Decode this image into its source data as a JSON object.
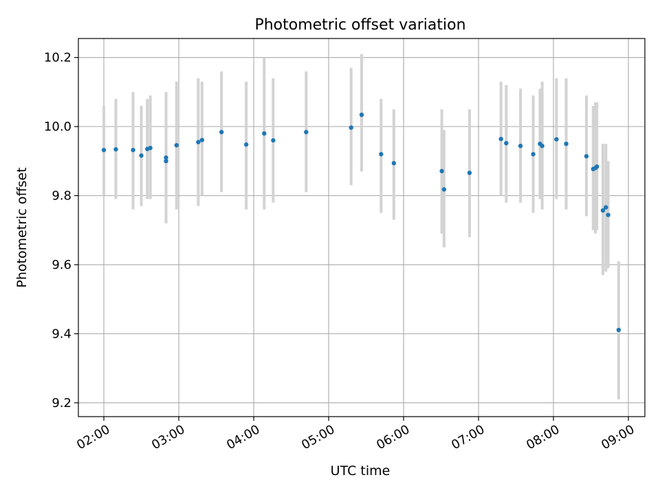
{
  "chart_data": {
    "type": "scatter",
    "title": "Photometric offset variation",
    "xlabel": "UTC time",
    "ylabel": "Photometric offset",
    "x_unit": "UTC time of day (hours)",
    "xlim": [
      1.66,
      9.22
    ],
    "ylim": [
      9.16,
      10.255
    ],
    "grid": true,
    "x_ticks": [
      {
        "value": 2,
        "label": "02:00"
      },
      {
        "value": 3,
        "label": "03:00"
      },
      {
        "value": 4,
        "label": "04:00"
      },
      {
        "value": 5,
        "label": "05:00"
      },
      {
        "value": 6,
        "label": "06:00"
      },
      {
        "value": 7,
        "label": "07:00"
      },
      {
        "value": 8,
        "label": "08:00"
      },
      {
        "value": 9,
        "label": "09:00"
      }
    ],
    "y_ticks": [
      {
        "value": 9.2,
        "label": "9.2"
      },
      {
        "value": 9.4,
        "label": "9.4"
      },
      {
        "value": 9.6,
        "label": "9.6"
      },
      {
        "value": 9.8,
        "label": "9.8"
      },
      {
        "value": 10.0,
        "label": "10.0"
      },
      {
        "value": 10.2,
        "label": "10.2"
      }
    ],
    "point_color": "#1f77b4",
    "errorbar_color": "#d3d3d3",
    "grid_color": "#b0b0b0",
    "points": [
      {
        "x": 2.0,
        "y": 9.932,
        "ylow": 9.8,
        "yhigh": 10.06
      },
      {
        "x": 2.16,
        "y": 9.934,
        "ylow": 9.79,
        "yhigh": 10.08
      },
      {
        "x": 2.39,
        "y": 9.932,
        "ylow": 9.76,
        "yhigh": 10.1
      },
      {
        "x": 2.5,
        "y": 9.916,
        "ylow": 9.77,
        "yhigh": 10.06
      },
      {
        "x": 2.58,
        "y": 9.935,
        "ylow": 9.79,
        "yhigh": 10.08
      },
      {
        "x": 2.62,
        "y": 9.938,
        "ylow": 9.79,
        "yhigh": 10.09
      },
      {
        "x": 2.83,
        "y": 9.9,
        "ylow": 9.72,
        "yhigh": 10.08
      },
      {
        "x": 2.83,
        "y": 9.91,
        "ylow": 9.72,
        "yhigh": 10.1
      },
      {
        "x": 2.97,
        "y": 9.946,
        "ylow": 9.76,
        "yhigh": 10.13
      },
      {
        "x": 3.26,
        "y": 9.955,
        "ylow": 9.77,
        "yhigh": 10.14
      },
      {
        "x": 3.31,
        "y": 9.961,
        "ylow": 9.8,
        "yhigh": 10.13
      },
      {
        "x": 3.57,
        "y": 9.984,
        "ylow": 9.81,
        "yhigh": 10.16
      },
      {
        "x": 3.9,
        "y": 9.948,
        "ylow": 9.76,
        "yhigh": 10.13
      },
      {
        "x": 4.14,
        "y": 9.98,
        "ylow": 9.76,
        "yhigh": 10.2
      },
      {
        "x": 4.26,
        "y": 9.96,
        "ylow": 9.78,
        "yhigh": 10.14
      },
      {
        "x": 4.7,
        "y": 9.984,
        "ylow": 9.81,
        "yhigh": 10.16
      },
      {
        "x": 5.3,
        "y": 9.997,
        "ylow": 9.83,
        "yhigh": 10.17
      },
      {
        "x": 5.44,
        "y": 10.034,
        "ylow": 9.87,
        "yhigh": 10.21
      },
      {
        "x": 5.7,
        "y": 9.92,
        "ylow": 9.75,
        "yhigh": 10.08
      },
      {
        "x": 5.87,
        "y": 9.894,
        "ylow": 9.73,
        "yhigh": 10.05
      },
      {
        "x": 6.51,
        "y": 9.871,
        "ylow": 9.69,
        "yhigh": 10.05
      },
      {
        "x": 6.54,
        "y": 9.818,
        "ylow": 9.65,
        "yhigh": 9.99
      },
      {
        "x": 6.88,
        "y": 9.866,
        "ylow": 9.68,
        "yhigh": 10.05
      },
      {
        "x": 7.3,
        "y": 9.964,
        "ylow": 9.8,
        "yhigh": 10.13
      },
      {
        "x": 7.37,
        "y": 9.952,
        "ylow": 9.78,
        "yhigh": 10.12
      },
      {
        "x": 7.56,
        "y": 9.944,
        "ylow": 9.78,
        "yhigh": 10.11
      },
      {
        "x": 7.73,
        "y": 9.92,
        "ylow": 9.75,
        "yhigh": 10.09
      },
      {
        "x": 7.82,
        "y": 9.95,
        "ylow": 9.79,
        "yhigh": 10.11
      },
      {
        "x": 7.85,
        "y": 9.944,
        "ylow": 9.76,
        "yhigh": 10.13
      },
      {
        "x": 8.04,
        "y": 9.963,
        "ylow": 9.79,
        "yhigh": 10.14
      },
      {
        "x": 8.17,
        "y": 9.95,
        "ylow": 9.76,
        "yhigh": 10.14
      },
      {
        "x": 8.44,
        "y": 9.914,
        "ylow": 9.74,
        "yhigh": 10.09
      },
      {
        "x": 8.53,
        "y": 9.877,
        "ylow": 9.7,
        "yhigh": 10.06
      },
      {
        "x": 8.56,
        "y": 9.88,
        "ylow": 9.69,
        "yhigh": 10.07
      },
      {
        "x": 8.58,
        "y": 9.884,
        "ylow": 9.7,
        "yhigh": 10.07
      },
      {
        "x": 8.66,
        "y": 9.757,
        "ylow": 9.57,
        "yhigh": 9.95
      },
      {
        "x": 8.7,
        "y": 9.766,
        "ylow": 9.58,
        "yhigh": 9.95
      },
      {
        "x": 8.73,
        "y": 9.744,
        "ylow": 9.59,
        "yhigh": 9.9
      },
      {
        "x": 8.87,
        "y": 9.411,
        "ylow": 9.21,
        "yhigh": 9.61
      }
    ]
  }
}
